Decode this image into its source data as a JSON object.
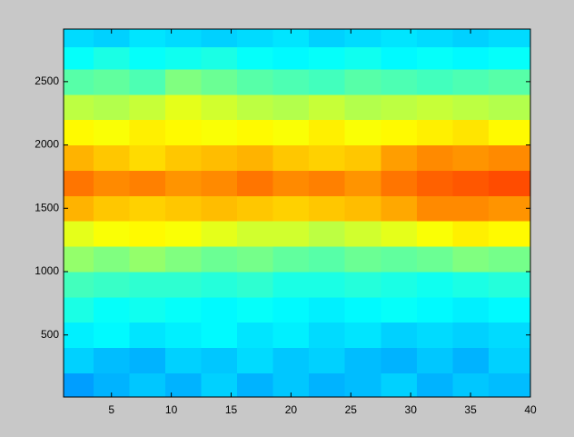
{
  "chart_data": {
    "type": "heatmap",
    "colormap": "jet",
    "clim": [
      0,
      1
    ],
    "x": [
      2,
      5,
      8,
      11,
      14,
      17,
      20,
      23,
      26,
      29,
      32,
      35,
      38
    ],
    "y": [
      100,
      300,
      500,
      700,
      900,
      1100,
      1300,
      1500,
      1700,
      1900,
      2100,
      2300,
      2500,
      2700,
      2850
    ],
    "z": [
      [
        0.28,
        0.3,
        0.32,
        0.3,
        0.33,
        0.3,
        0.32,
        0.3,
        0.31,
        0.33,
        0.3,
        0.32,
        0.31
      ],
      [
        0.33,
        0.31,
        0.3,
        0.33,
        0.32,
        0.34,
        0.32,
        0.33,
        0.31,
        0.3,
        0.32,
        0.3,
        0.33
      ],
      [
        0.36,
        0.37,
        0.35,
        0.36,
        0.37,
        0.35,
        0.36,
        0.34,
        0.35,
        0.33,
        0.34,
        0.33,
        0.34
      ],
      [
        0.4,
        0.38,
        0.39,
        0.38,
        0.37,
        0.38,
        0.37,
        0.36,
        0.37,
        0.38,
        0.37,
        0.36,
        0.37
      ],
      [
        0.44,
        0.43,
        0.42,
        0.42,
        0.41,
        0.42,
        0.4,
        0.4,
        0.41,
        0.4,
        0.39,
        0.4,
        0.41
      ],
      [
        0.52,
        0.5,
        0.52,
        0.5,
        0.48,
        0.49,
        0.47,
        0.46,
        0.48,
        0.47,
        0.48,
        0.5,
        0.49
      ],
      [
        0.6,
        0.62,
        0.63,
        0.62,
        0.6,
        0.58,
        0.58,
        0.56,
        0.58,
        0.6,
        0.62,
        0.64,
        0.63
      ],
      [
        0.7,
        0.68,
        0.67,
        0.68,
        0.69,
        0.68,
        0.67,
        0.68,
        0.69,
        0.71,
        0.74,
        0.74,
        0.73
      ],
      [
        0.76,
        0.74,
        0.75,
        0.73,
        0.74,
        0.76,
        0.74,
        0.75,
        0.73,
        0.76,
        0.78,
        0.79,
        0.8
      ],
      [
        0.7,
        0.68,
        0.66,
        0.68,
        0.69,
        0.7,
        0.68,
        0.67,
        0.68,
        0.72,
        0.74,
        0.73,
        0.74
      ],
      [
        0.63,
        0.62,
        0.64,
        0.63,
        0.62,
        0.63,
        0.62,
        0.64,
        0.62,
        0.63,
        0.64,
        0.65,
        0.63
      ],
      [
        0.56,
        0.55,
        0.57,
        0.6,
        0.58,
        0.56,
        0.55,
        0.57,
        0.55,
        0.56,
        0.57,
        0.56,
        0.55
      ],
      [
        0.46,
        0.47,
        0.45,
        0.5,
        0.48,
        0.46,
        0.45,
        0.44,
        0.46,
        0.45,
        0.44,
        0.45,
        0.46
      ],
      [
        0.38,
        0.4,
        0.38,
        0.39,
        0.4,
        0.38,
        0.37,
        0.38,
        0.39,
        0.37,
        0.38,
        0.37,
        0.38
      ],
      [
        0.34,
        0.33,
        0.35,
        0.34,
        0.33,
        0.34,
        0.35,
        0.33,
        0.34,
        0.35,
        0.34,
        0.33,
        0.34
      ]
    ],
    "xlim": [
      1,
      40
    ],
    "ylim": [
      10,
      2915
    ],
    "xticks": [
      5,
      10,
      15,
      20,
      25,
      30,
      35,
      40
    ],
    "yticks": [
      500,
      1000,
      1500,
      2000,
      2500
    ]
  }
}
